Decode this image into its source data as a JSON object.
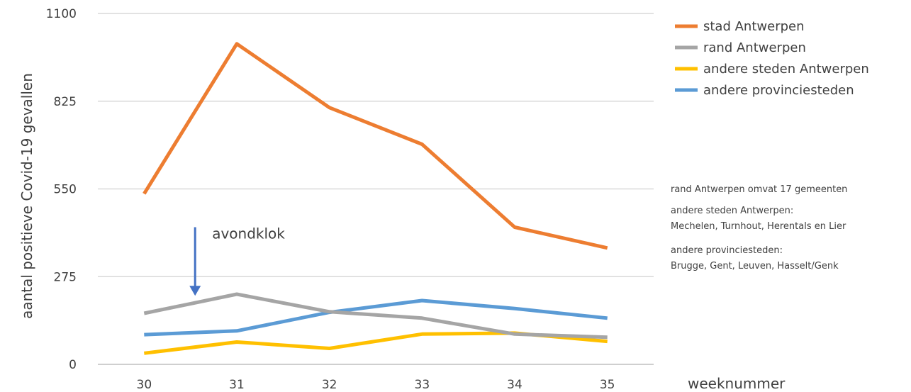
{
  "chart_data": {
    "type": "line",
    "x": [
      30,
      31,
      32,
      33,
      34,
      35
    ],
    "ylim": [
      0,
      1100
    ],
    "yticks": [
      0,
      275,
      550,
      825,
      1100
    ],
    "grid": true,
    "xlabel": "weeknummer",
    "ylabel": "aantal positieve Covid-19 gevallen",
    "legend_position": "top-right",
    "series": [
      {
        "name": "stad Antwerpen",
        "color": "#ED7D31",
        "values": [
          535,
          1005,
          805,
          690,
          430,
          365
        ]
      },
      {
        "name": "rand Antwerpen",
        "color": "#A5A5A5",
        "values": [
          160,
          220,
          165,
          145,
          95,
          85
        ]
      },
      {
        "name": "andere steden Antwerpen",
        "color": "#FFC000",
        "values": [
          35,
          70,
          50,
          95,
          98,
          72
        ]
      },
      {
        "name": "andere provinciesteden",
        "color": "#5B9BD5",
        "values": [
          93,
          105,
          163,
          200,
          175,
          145
        ]
      }
    ],
    "annotation": {
      "label": "avondklok",
      "x": 30.55,
      "y_from": 430,
      "y_to": 215,
      "color": "#4472C4"
    },
    "notes": [
      "rand Antwerpen omvat 17 gemeenten",
      "andere steden Antwerpen:",
      "Mechelen, Turnhout, Herentals en Lier",
      "andere provinciesteden:",
      "Brugge, Gent, Leuven, Hasselt/Genk"
    ]
  }
}
